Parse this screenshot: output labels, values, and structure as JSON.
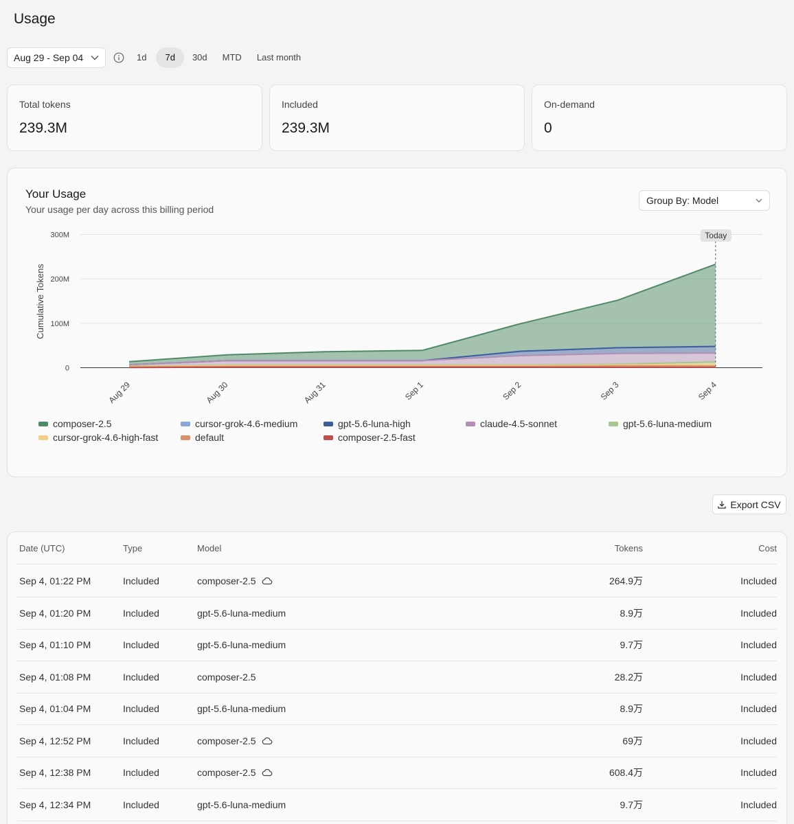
{
  "page": {
    "title": "Usage"
  },
  "filters": {
    "date_range": "Aug 29 - Sep 04",
    "ranges": [
      {
        "label": "1d",
        "active": false
      },
      {
        "label": "7d",
        "active": true
      },
      {
        "label": "30d",
        "active": false
      },
      {
        "label": "MTD",
        "active": false
      },
      {
        "label": "Last month",
        "active": false
      }
    ]
  },
  "stats": [
    {
      "label": "Total tokens",
      "value": "239.3M"
    },
    {
      "label": "Included",
      "value": "239.3M"
    },
    {
      "label": "On-demand",
      "value": "0"
    }
  ],
  "usage": {
    "title": "Your Usage",
    "subtitle": "Your usage per day across this billing period",
    "group_by": "Group By: Model"
  },
  "chart_data": {
    "type": "area",
    "stacked": true,
    "ylabel": "Cumulative Tokens",
    "ylim": [
      0,
      300000000
    ],
    "yticks": [
      "0",
      "100M",
      "200M",
      "300M"
    ],
    "ytick_values": [
      0,
      100000000,
      200000000,
      300000000
    ],
    "categories": [
      "Aug 29",
      "Aug 30",
      "Aug 31",
      "Sep 1",
      "Sep 2",
      "Sep 3",
      "Sep 4"
    ],
    "marker_label": "Today",
    "marker_category": "Sep 4",
    "grid": true,
    "legend_position": "bottom",
    "series": [
      {
        "name": "composer-2.5",
        "color": "#4f8a66",
        "values": [
          7000000,
          13000000,
          20000000,
          23000000,
          62000000,
          107000000,
          185000000
        ]
      },
      {
        "name": "cursor-grok-4.6-medium",
        "color": "#8aa6d6",
        "values": [
          0,
          0,
          0,
          0,
          0,
          0,
          0
        ]
      },
      {
        "name": "gpt-5.6-luna-high",
        "color": "#3d5f99",
        "values": [
          0,
          0,
          0,
          0,
          10000000,
          13000000,
          15000000
        ]
      },
      {
        "name": "claude-4.5-sonnet",
        "color": "#b38fb5",
        "values": [
          3000000,
          10000000,
          10000000,
          10000000,
          21000000,
          24000000,
          20000000
        ]
      },
      {
        "name": "gpt-5.6-luna-medium",
        "color": "#a9c68f",
        "values": [
          1000000,
          1000000,
          1000000,
          1000000,
          1000000,
          2000000,
          5000000
        ]
      },
      {
        "name": "cursor-grok-4.6-high-fast",
        "color": "#f0cf8a",
        "values": [
          1000000,
          2000000,
          2000000,
          2000000,
          2000000,
          2000000,
          4000000
        ]
      },
      {
        "name": "default",
        "color": "#d9906a",
        "values": [
          1000000,
          2000000,
          2000000,
          2000000,
          2000000,
          3000000,
          3000000
        ]
      },
      {
        "name": "composer-2.5-fast",
        "color": "#c0504d",
        "values": [
          500000,
          1000000,
          1000000,
          1000000,
          1000000,
          1000000,
          1000000
        ]
      }
    ]
  },
  "export": {
    "label": "Export CSV"
  },
  "table": {
    "headers": {
      "date": "Date (UTC)",
      "type": "Type",
      "model": "Model",
      "tokens": "Tokens",
      "cost": "Cost"
    },
    "rows": [
      {
        "date": "Sep 4, 01:22 PM",
        "type": "Included",
        "model": "composer-2.5",
        "cloud": true,
        "tokens": "264.9万",
        "cost": "Included"
      },
      {
        "date": "Sep 4, 01:20 PM",
        "type": "Included",
        "model": "gpt-5.6-luna-medium",
        "cloud": false,
        "tokens": "8.9万",
        "cost": "Included"
      },
      {
        "date": "Sep 4, 01:10 PM",
        "type": "Included",
        "model": "gpt-5.6-luna-medium",
        "cloud": false,
        "tokens": "9.7万",
        "cost": "Included"
      },
      {
        "date": "Sep 4, 01:08 PM",
        "type": "Included",
        "model": "composer-2.5",
        "cloud": false,
        "tokens": "28.2万",
        "cost": "Included"
      },
      {
        "date": "Sep 4, 01:04 PM",
        "type": "Included",
        "model": "gpt-5.6-luna-medium",
        "cloud": false,
        "tokens": "8.9万",
        "cost": "Included"
      },
      {
        "date": "Sep 4, 12:52 PM",
        "type": "Included",
        "model": "composer-2.5",
        "cloud": true,
        "tokens": "69万",
        "cost": "Included"
      },
      {
        "date": "Sep 4, 12:38 PM",
        "type": "Included",
        "model": "composer-2.5",
        "cloud": true,
        "tokens": "608.4万",
        "cost": "Included"
      },
      {
        "date": "Sep 4, 12:34 PM",
        "type": "Included",
        "model": "gpt-5.6-luna-medium",
        "cloud": false,
        "tokens": "9.7万",
        "cost": "Included"
      }
    ]
  }
}
